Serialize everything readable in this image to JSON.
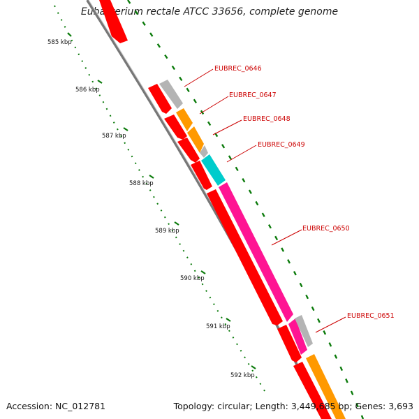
{
  "title": "Eubacterium rectale ATCC 33656, complete genome",
  "footer": {
    "accession": "Accession: NC_012781",
    "summary": "Topology: circular; Length: 3,449,685 bp; Genes: 3,693"
  },
  "kbp_labels": [
    "585 kbp",
    "586 kbp",
    "587 kbp",
    "588 kbp",
    "589 kbp",
    "590 kbp",
    "591 kbp",
    "592 kbp"
  ],
  "gene_labels": [
    "EUBREC_0646",
    "EUBREC_0647",
    "EUBREC_0648",
    "EUBREC_0649",
    "EUBREC_0650",
    "EUBREC_0651"
  ],
  "colors": {
    "red": "#ff0000",
    "grey": "#b4b4b4",
    "orange": "#ff9900",
    "cyan": "#00cccc",
    "magenta": "#ff1493",
    "backbone": "#777777",
    "tick": "#0a7a0a",
    "label": "#cc0000"
  }
}
